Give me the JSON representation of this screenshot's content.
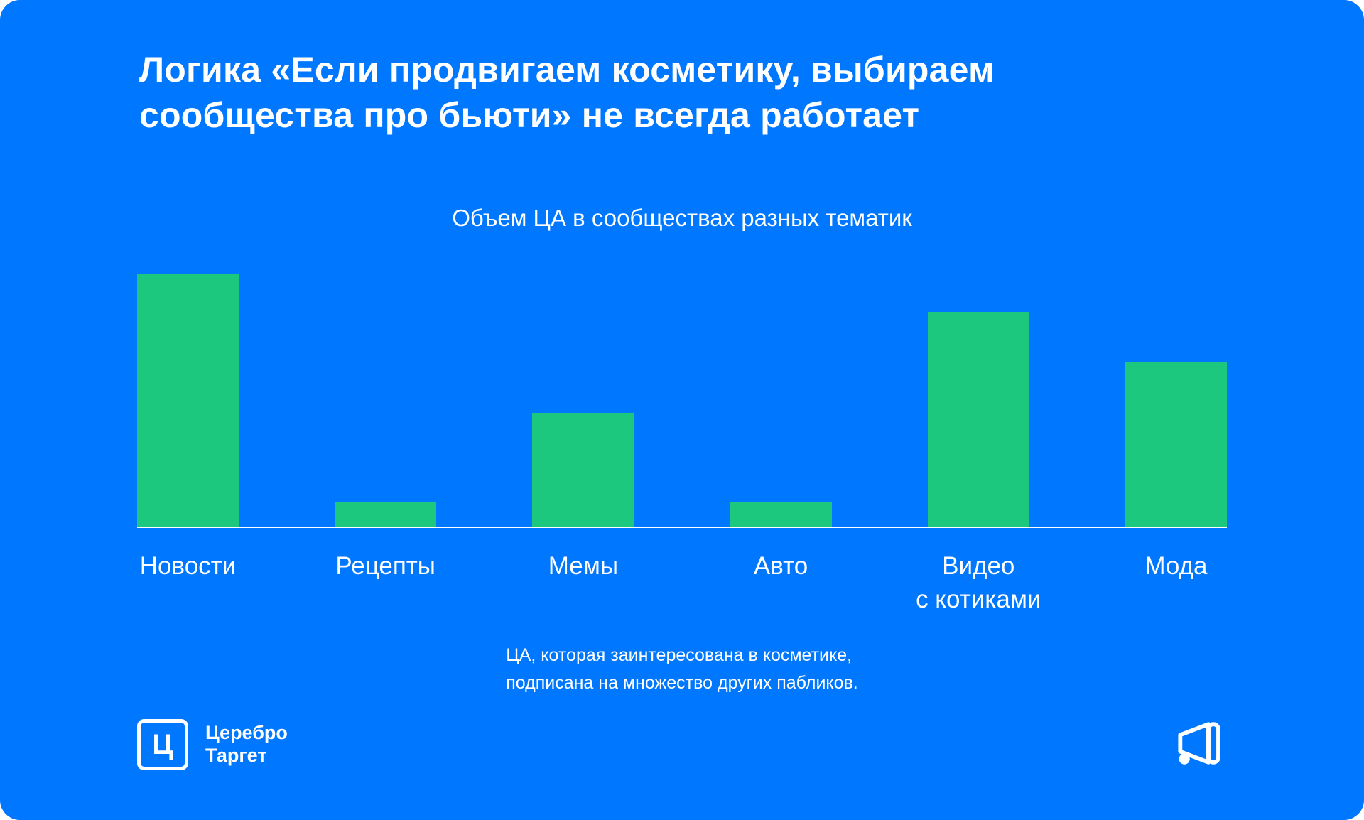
{
  "slide": {
    "title": "Логика «Если продвигаем косметику, выбираем\nсообщества про бьюти» не всегда работает",
    "caption": "ЦА, которая заинтересована в косметике,\nподписана на множество других пабликов.",
    "logo": {
      "letter": "Ц",
      "name": "Церебро\nТаргет"
    },
    "colors": {
      "background": "#0077FF",
      "bar": "#1BC87E",
      "text": "#FFFFFF",
      "baseline": "#FFFFFF"
    },
    "icons": {
      "megaphone": "megaphone-icon",
      "logo_mark": "cerebro-target-logo"
    }
  },
  "chart_data": {
    "type": "bar",
    "title": "Объем ЦА в сообществах разных тематик",
    "categories": [
      "Новости",
      "Рецепты",
      "Мемы",
      "Авто",
      "Видео\nс котиками",
      "Мода"
    ],
    "values": [
      100,
      10,
      45,
      10,
      85,
      65
    ],
    "xlabel": "",
    "ylabel": "",
    "ylim": [
      0,
      100
    ],
    "grid": false,
    "legend": false,
    "bar_color": "#1BC87E",
    "baseline_color": "#FFFFFF"
  }
}
